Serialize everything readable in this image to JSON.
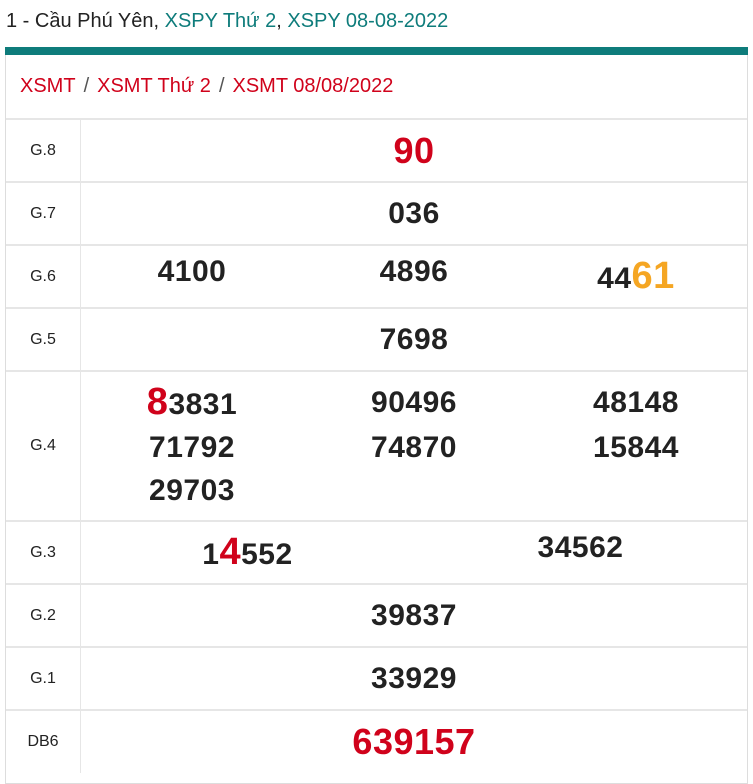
{
  "header": {
    "prefix": "1 - Cầu Phú Yên, ",
    "link1": "XSPY Thứ 2",
    "comma": ", ",
    "link2": "XSPY 08-08-2022"
  },
  "breadcrumb": [
    "XSMT",
    "XSMT Thứ 2",
    "XSMT 08/08/2022"
  ],
  "breadcrumb_sep": "/",
  "colors": {
    "accent": "#0e7c7b",
    "highlight_red": "#d0021b",
    "highlight_orange": "#f5a623"
  },
  "prizes": {
    "g8": {
      "label": "G.8",
      "value": "90"
    },
    "g7": {
      "label": "G.7",
      "value": "036"
    },
    "g6": {
      "label": "G.6",
      "values": [
        "4100",
        "4896"
      ],
      "v3_prefix": "44",
      "v3_highlight": "61"
    },
    "g5": {
      "label": "G.5",
      "value": "7698"
    },
    "g4": {
      "label": "G.4",
      "v1_highlight": "8",
      "v1_rest": "3831",
      "values": [
        "90496",
        "48148",
        "71792",
        "74870",
        "15844",
        "29703"
      ]
    },
    "g3": {
      "label": "G.3",
      "v1_prefix": "1",
      "v1_highlight": "4",
      "v1_rest": "552",
      "v2": "34562"
    },
    "g2": {
      "label": "G.2",
      "value": "39837"
    },
    "g1": {
      "label": "G.1",
      "value": "33929"
    },
    "db": {
      "label": "DB6",
      "value": "639157"
    }
  }
}
